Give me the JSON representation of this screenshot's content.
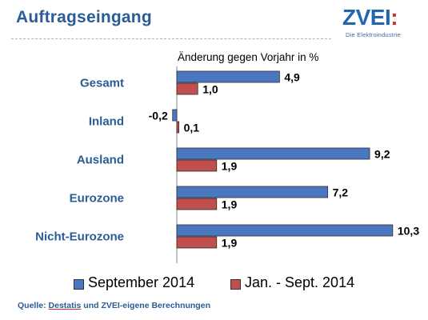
{
  "header": {
    "title": "Auftragseingang",
    "logo_text": "ZVEI",
    "logo_colon": ":",
    "logo_tagline": "Die Elektroindustrie"
  },
  "chart_data": {
    "type": "bar",
    "orientation": "horizontal",
    "title": "Änderung gegen Vorjahr in %",
    "categories": [
      "Gesamt",
      "Inland",
      "Ausland",
      "Eurozone",
      "Nicht-Eurozone"
    ],
    "series": [
      {
        "name": "September 2014",
        "values": [
          4.9,
          -0.2,
          9.2,
          7.2,
          10.3
        ],
        "color": "#4a78c0"
      },
      {
        "name": "Jan. - Sept. 2014",
        "values": [
          1.0,
          0.1,
          1.9,
          1.9,
          1.9
        ],
        "color": "#c0504d"
      }
    ],
    "value_labels": [
      [
        "4,9",
        "-0,2",
        "9,2",
        "7,2",
        "10,3"
      ],
      [
        "1,0",
        "0,1",
        "1,9",
        "1,9",
        "1,9"
      ]
    ],
    "xlim": [
      -0.5,
      10.5
    ],
    "grid": false,
    "legend_position": "bottom"
  },
  "source": {
    "prefix": "Quelle: ",
    "link": "Destatis",
    "suffix": " und ZVEI-eigene Berechnungen"
  }
}
